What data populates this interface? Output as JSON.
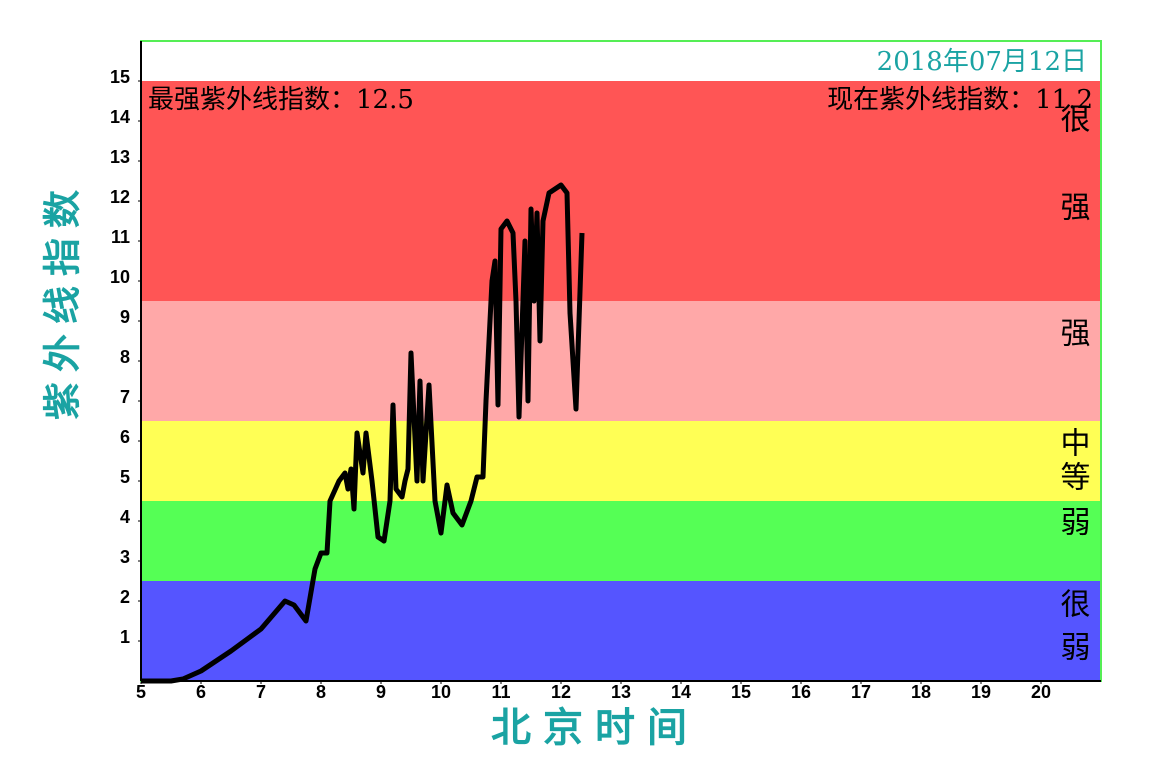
{
  "chart_data": {
    "type": "line",
    "date": "2018年07月12日",
    "max_text": "最强紫外线指数：12.5",
    "current_text": "现在紫外线指数：11.2",
    "y_label": "紫外线指数",
    "x_label": "北京时间",
    "xlim": [
      5,
      21
    ],
    "ylim": [
      0,
      16
    ],
    "xticks": [
      5,
      6,
      7,
      8,
      9,
      10,
      11,
      12,
      13,
      14,
      15,
      16,
      17,
      18,
      19,
      20
    ],
    "yticks": [
      1,
      2,
      3,
      4,
      5,
      6,
      7,
      8,
      9,
      10,
      11,
      12,
      13,
      14,
      15
    ],
    "bands": [
      {
        "label": "很弱",
        "from": 0,
        "to": 2.5,
        "color": "#5555ff"
      },
      {
        "label": "弱",
        "from": 2.5,
        "to": 4.5,
        "color": "#55ff55"
      },
      {
        "label": "中等",
        "from": 4.5,
        "to": 6.5,
        "color": "#ffff55"
      },
      {
        "label": "强",
        "from": 6.5,
        "to": 9.5,
        "color": "#ffa8a8"
      },
      {
        "label": "很强",
        "from": 9.5,
        "to": 15,
        "color": "#ff5555"
      }
    ],
    "x": [
      5.0,
      5.5,
      5.7,
      6.0,
      6.5,
      7.0,
      7.4,
      7.55,
      7.75,
      7.9,
      8.0,
      8.1,
      8.15,
      8.3,
      8.4,
      8.45,
      8.5,
      8.55,
      8.6,
      8.7,
      8.75,
      8.85,
      8.95,
      9.05,
      9.15,
      9.2,
      9.25,
      9.35,
      9.4,
      9.45,
      9.5,
      9.6,
      9.65,
      9.7,
      9.8,
      9.9,
      10.0,
      10.1,
      10.2,
      10.35,
      10.5,
      10.6,
      10.7,
      10.75,
      10.85,
      10.9,
      10.95,
      11.0,
      11.1,
      11.2,
      11.25,
      11.3,
      11.4,
      11.45,
      11.5,
      11.55,
      11.6,
      11.65,
      11.7,
      11.8,
      11.9,
      12.0,
      12.1,
      12.15,
      12.25,
      12.3,
      12.35
    ],
    "series": [
      {
        "color": "#000000",
        "values": [
          0,
          0,
          0.05,
          0.25,
          0.75,
          1.3,
          2.0,
          1.9,
          1.5,
          2.8,
          3.2,
          3.2,
          4.5,
          5.0,
          5.2,
          4.8,
          5.3,
          4.3,
          6.2,
          5.2,
          6.2,
          5.0,
          3.6,
          3.5,
          4.5,
          6.9,
          4.8,
          4.6,
          5.0,
          5.3,
          8.2,
          5.0,
          7.5,
          5.0,
          7.4,
          4.5,
          3.7,
          4.9,
          4.2,
          3.9,
          4.5,
          5.1,
          5.1,
          7.0,
          10.0,
          10.5,
          6.9,
          11.3,
          11.5,
          11.2,
          9.5,
          6.6,
          11.0,
          7.0,
          11.8,
          9.5,
          11.7,
          8.5,
          11.5,
          12.2,
          12.3,
          12.4,
          12.2,
          9.2,
          6.8,
          9.0,
          11.2
        ]
      }
    ]
  }
}
